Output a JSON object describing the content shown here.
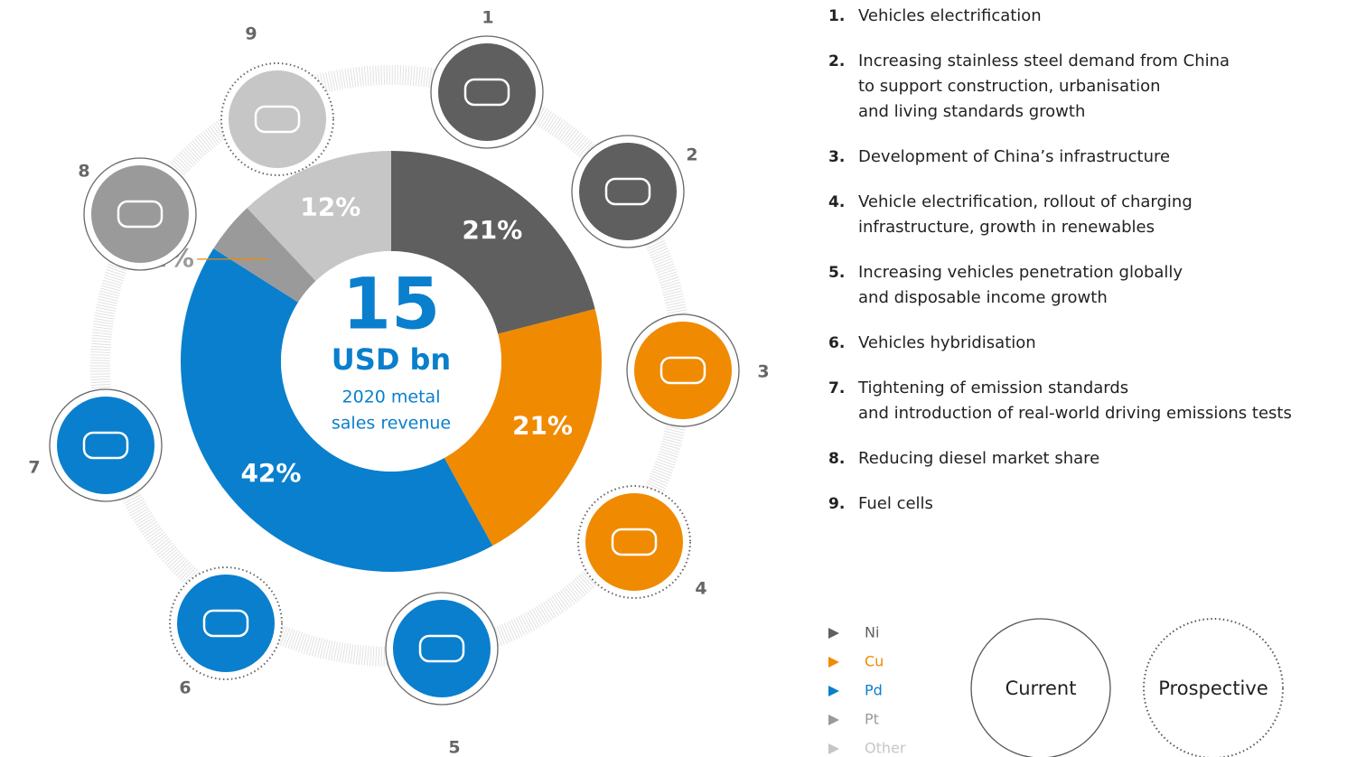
{
  "chart_data": {
    "type": "donut",
    "categories": [
      "Ni",
      "Cu",
      "Pd",
      "Pt",
      "Other"
    ],
    "values": [
      21,
      21,
      42,
      4,
      12
    ],
    "value_labels": [
      "21%",
      "21%",
      "42%",
      "4%",
      "12%"
    ],
    "colors": [
      "#5f5f5f",
      "#f08a00",
      "#0a7fcd",
      "#9a9a9a",
      "#c6c6c6"
    ],
    "total": 15,
    "total_unit": "USD bn",
    "caption": [
      "2020 metal",
      "sales revenue"
    ]
  },
  "drivers": [
    {
      "number": "1.",
      "lines": [
        "Vehicles electrification"
      ]
    },
    {
      "number": "2.",
      "lines": [
        "Increasing stainless steel demand from China",
        "to support construction, urbanisation",
        "and living standards growth"
      ]
    },
    {
      "number": "3.",
      "lines": [
        "Development of China’s infrastructure"
      ]
    },
    {
      "number": "4.",
      "lines": [
        "Vehicle electrification, rollout of charging",
        "infrastructure, growth in renewables"
      ]
    },
    {
      "number": "5.",
      "lines": [
        "Increasing vehicles penetration globally",
        "and disposable income growth"
      ]
    },
    {
      "number": "6.",
      "lines": [
        "Vehicles hybridisation"
      ]
    },
    {
      "number": "7.",
      "lines": [
        "Tightening of emission standards",
        "and introduction of real-world driving emissions tests"
      ]
    },
    {
      "number": "8.",
      "lines": [
        "Reducing diesel market share"
      ]
    },
    {
      "number": "9.",
      "lines": [
        "Fuel cells"
      ]
    }
  ],
  "icons": [
    "1",
    "2",
    "3",
    "4",
    "5",
    "6",
    "7",
    "8",
    "9"
  ],
  "key": {
    "current": "Current",
    "prospective": "Prospective"
  }
}
